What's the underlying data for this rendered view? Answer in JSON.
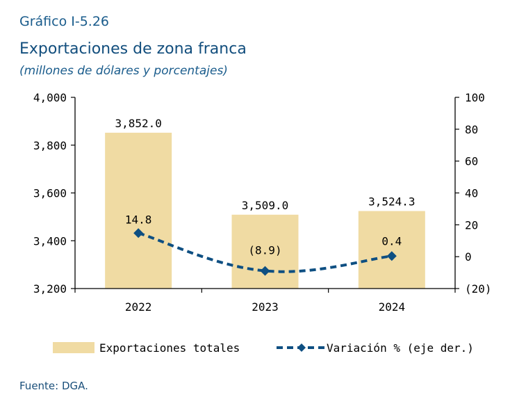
{
  "figure_label": "Gráfico I-5.26",
  "title": "Exportaciones de zona franca",
  "subtitle": "(millones de dólares y porcentajes)",
  "source": "Fuente: DGA.",
  "colors": {
    "bar": "#f0dba3",
    "line": "#0e4f82",
    "text_blue": "#1a5c8c"
  },
  "chart_data": {
    "type": "bar",
    "categories": [
      "2022",
      "2023",
      "2024"
    ],
    "series": [
      {
        "name": "Exportaciones totales",
        "type": "bar",
        "axis": "left",
        "values": [
          3852.0,
          3509.0,
          3524.3
        ],
        "labels": [
          "3,852.0",
          "3,509.0",
          "3,524.3"
        ]
      },
      {
        "name": "Variación % (eje der.)",
        "type": "line",
        "style": "dashed",
        "marker": "diamond",
        "axis": "right",
        "values": [
          14.8,
          -8.9,
          0.4
        ],
        "labels": [
          "14.8",
          "(8.9)",
          "0.4"
        ]
      }
    ],
    "y_left": {
      "min": 3200,
      "max": 4000,
      "ticks": [
        3200,
        3400,
        3600,
        3800,
        4000
      ],
      "tick_labels": [
        "3,200",
        "3,400",
        "3,600",
        "3,800",
        "4,000"
      ]
    },
    "y_right": {
      "min": -20,
      "max": 100,
      "ticks": [
        -20,
        0,
        20,
        40,
        60,
        80,
        100
      ],
      "tick_labels": [
        "(20)",
        "0",
        "20",
        "40",
        "60",
        "80",
        "100"
      ]
    },
    "grid": false,
    "legend": "bottom"
  }
}
